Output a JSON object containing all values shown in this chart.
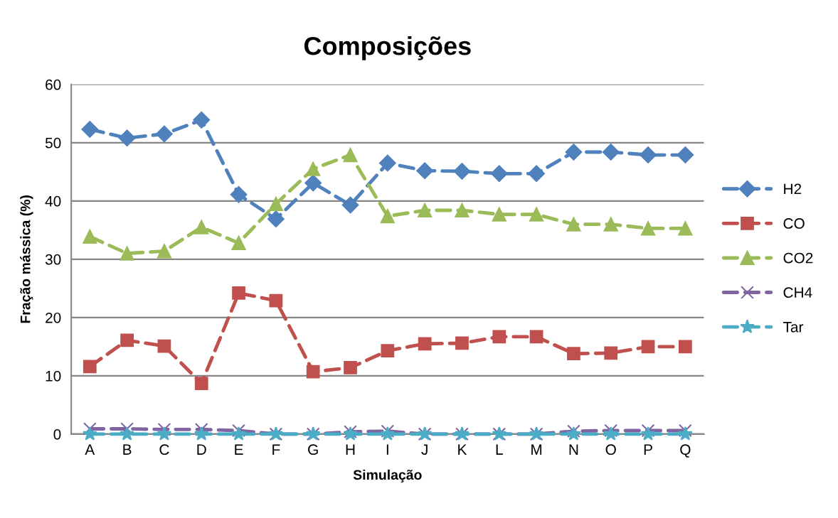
{
  "chart_data": {
    "type": "line",
    "title": "Composições",
    "xlabel": "Simulação",
    "ylabel": "Fração mássica (%)",
    "categories": [
      "A",
      "B",
      "C",
      "D",
      "E",
      "F",
      "G",
      "H",
      "I",
      "J",
      "K",
      "L",
      "M",
      "N",
      "O",
      "P",
      "Q"
    ],
    "ylim": [
      0,
      60
    ],
    "yticks": [
      0,
      10,
      20,
      30,
      40,
      50,
      60
    ],
    "grid": "y",
    "legend": "right",
    "line_style": "dashed",
    "series": [
      {
        "name": "H2",
        "color": "#4f81bd",
        "marker": "diamond",
        "values": [
          52.3,
          50.8,
          51.5,
          53.9,
          41.1,
          36.9,
          43.1,
          39.3,
          46.5,
          45.2,
          45.1,
          44.7,
          44.7,
          48.4,
          48.4,
          47.9,
          47.9
        ]
      },
      {
        "name": "CO",
        "color": "#c0504d",
        "marker": "square",
        "values": [
          11.6,
          16.1,
          15.1,
          8.7,
          24.2,
          22.9,
          10.7,
          11.4,
          14.3,
          15.5,
          15.6,
          16.7,
          16.7,
          13.8,
          13.9,
          15.0,
          15.0
        ]
      },
      {
        "name": "CO2",
        "color": "#9bbb59",
        "marker": "triangle",
        "values": [
          33.9,
          31.0,
          31.4,
          35.5,
          32.8,
          39.5,
          45.5,
          47.9,
          37.4,
          38.4,
          38.4,
          37.7,
          37.7,
          36.0,
          36.0,
          35.3,
          35.3
        ]
      },
      {
        "name": "CH4",
        "color": "#8064a2",
        "marker": "cross",
        "values": [
          0.9,
          0.9,
          0.8,
          0.8,
          0.6,
          0,
          0,
          0.4,
          0.5,
          0,
          0,
          0,
          0,
          0.5,
          0.6,
          0.6,
          0.6
        ]
      },
      {
        "name": "Tar",
        "color": "#4bacc6",
        "marker": "star",
        "values": [
          0,
          0,
          0,
          0,
          0,
          0,
          0,
          0,
          0,
          0,
          0,
          0,
          0,
          0,
          0,
          0,
          0
        ]
      }
    ]
  }
}
